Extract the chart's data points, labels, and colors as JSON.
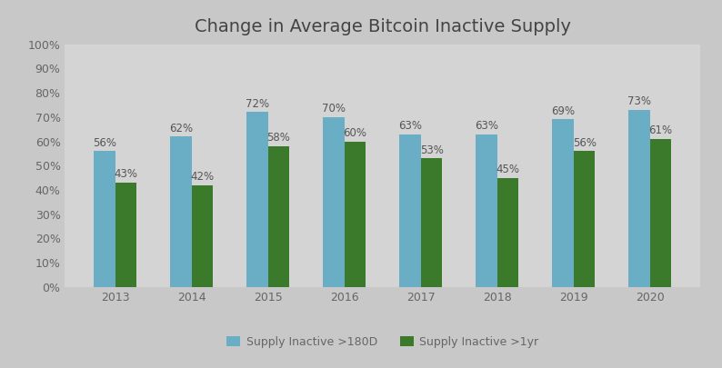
{
  "title": "Change in Average Bitcoin Inactive Supply",
  "categories": [
    "2013",
    "2014",
    "2015",
    "2016",
    "2017",
    "2018",
    "2019",
    "2020"
  ],
  "series_180d": [
    0.56,
    0.62,
    0.72,
    0.7,
    0.63,
    0.63,
    0.69,
    0.73
  ],
  "series_1yr": [
    0.43,
    0.42,
    0.58,
    0.6,
    0.53,
    0.45,
    0.56,
    0.61
  ],
  "labels_180d": [
    "56%",
    "62%",
    "72%",
    "70%",
    "63%",
    "63%",
    "69%",
    "73%"
  ],
  "labels_1yr": [
    "43%",
    "42%",
    "58%",
    "60%",
    "53%",
    "45%",
    "56%",
    "61%"
  ],
  "color_180d": "#6aaec6",
  "color_1yr": "#3a7a2a",
  "outer_bg_color": "#c8c8c8",
  "plot_bg_color": "#d4d4d4",
  "ylim": [
    0,
    1.0
  ],
  "yticks": [
    0,
    0.1,
    0.2,
    0.3,
    0.4,
    0.5,
    0.6,
    0.7,
    0.8,
    0.9,
    1.0
  ],
  "ytick_labels": [
    "0%",
    "10%",
    "20%",
    "30%",
    "40%",
    "50%",
    "60%",
    "70%",
    "80%",
    "90%",
    "100%"
  ],
  "legend_label_180d": "Supply Inactive >180D",
  "legend_label_1yr": "Supply Inactive >1yr",
  "bar_width": 0.28,
  "title_fontsize": 14,
  "label_fontsize": 8.5,
  "tick_fontsize": 9,
  "legend_fontsize": 9
}
